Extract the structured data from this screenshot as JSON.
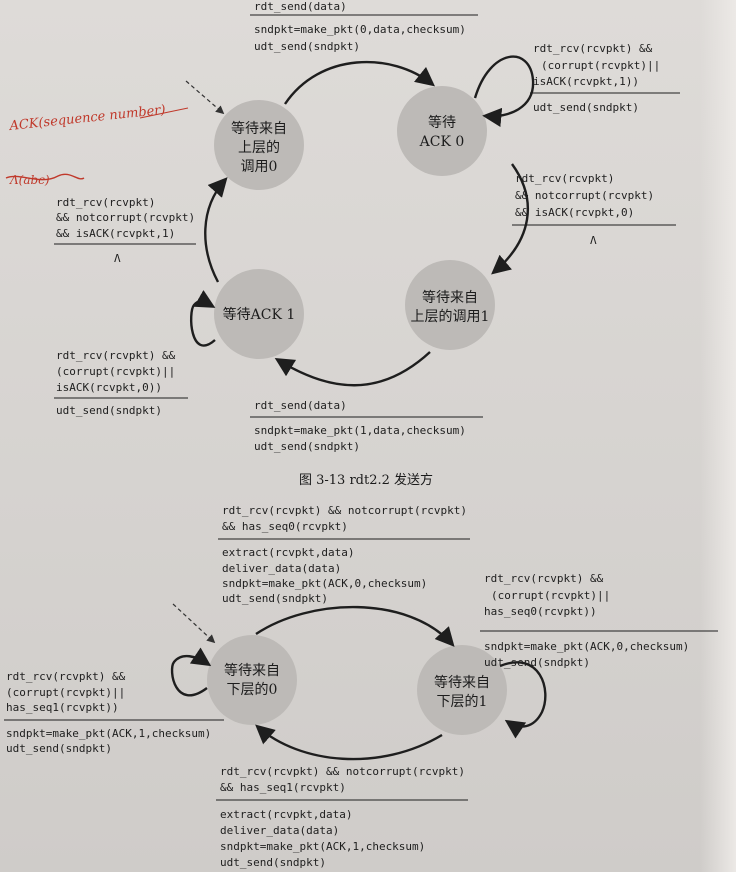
{
  "fig13": {
    "states": {
      "wait_call0": [
        "等待来自",
        "上层的",
        "调用0"
      ],
      "wait_ack0": [
        "等待",
        "ACK 0"
      ],
      "wait_call1": [
        "等待来自",
        "上层的调用1"
      ],
      "wait_ack1": [
        "等待ACK 1"
      ]
    },
    "trans_top": {
      "event": "rdt_send(data)",
      "actions": [
        "sndpkt=make_pkt(0,data,checksum)",
        "udt_send(sndpkt)"
      ]
    },
    "trans_ack0_self": {
      "event": [
        "rdt_rcv(rcvpkt) &&",
        "(corrupt(rcvpkt)||",
        "isACK(rcvpkt,1))"
      ],
      "action": "udt_send(sndpkt)"
    },
    "trans_right": {
      "event": [
        "rdt_rcv(rcvpkt)",
        "&& notcorrupt(rcvpkt)",
        "&& isACK(rcvpkt,0)"
      ],
      "action": "Λ"
    },
    "trans_left": {
      "event": [
        "rdt_rcv(rcvpkt)",
        "&& notcorrupt(rcvpkt)",
        "&& isACK(rcvpkt,1)"
      ],
      "action": "Λ"
    },
    "trans_ack1_self": {
      "event": [
        "rdt_rcv(rcvpkt) &&",
        "(corrupt(rcvpkt)||",
        "isACK(rcvpkt,0))"
      ],
      "action": "udt_send(sndpkt)"
    },
    "trans_bottom": {
      "event": "rdt_send(data)",
      "actions": [
        "sndpkt=make_pkt(1,data,checksum)",
        "udt_send(sndpkt)"
      ]
    },
    "caption": "图 3-13   rdt2.2 发送方",
    "handwritten": {
      "note": "ACK(sequence number)",
      "strike": "Λ(abc)"
    }
  },
  "fig14": {
    "states": {
      "wait_below0": [
        "等待来自",
        "下层的0"
      ],
      "wait_below1": [
        "等待来自",
        "下层的1"
      ]
    },
    "trans_top": {
      "event": [
        "rdt_rcv(rcvpkt) && notcorrupt(rcvpkt)",
        "&& has_seq0(rcvpkt)"
      ],
      "actions": [
        "extract(rcvpkt,data)",
        "deliver_data(data)",
        "sndpkt=make_pkt(ACK,0,checksum)",
        "udt_send(sndpkt)"
      ]
    },
    "trans_right_self": {
      "event": [
        "rdt_rcv(rcvpkt) &&",
        "(corrupt(rcvpkt)||",
        "has_seq0(rcvpkt))"
      ],
      "actions": [
        "sndpkt=make_pkt(ACK,0,checksum)",
        "udt_send(sndpkt)"
      ]
    },
    "trans_left_self": {
      "event": [
        "rdt_rcv(rcvpkt) &&",
        "(corrupt(rcvpkt)||",
        "has_seq1(rcvpkt))"
      ],
      "actions": [
        "sndpkt=make_pkt(ACK,1,checksum)",
        "udt_send(sndpkt)"
      ]
    },
    "trans_bottom": {
      "event": [
        "rdt_rcv(rcvpkt) && notcorrupt(rcvpkt)",
        "&& has_seq1(rcvpkt)"
      ],
      "actions": [
        "extract(rcvpkt,data)",
        "deliver_data(data)",
        "sndpkt=make_pkt(ACK,1,checksum)",
        "udt_send(sndpkt)"
      ]
    }
  },
  "colors": {
    "state_fill": "#bdbab7",
    "ink": "#1e1e1e",
    "annotation": "#c0392b"
  }
}
